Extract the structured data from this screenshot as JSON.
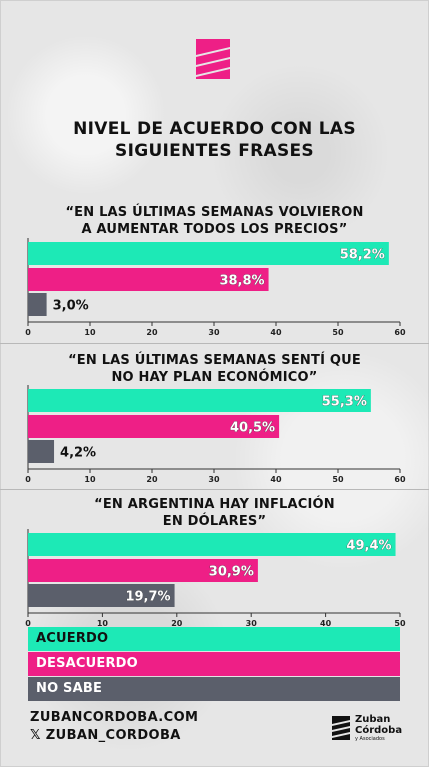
{
  "title_lines": [
    "NIVEL DE ACUERDO CON LAS",
    "SIGUIENTES FRASES"
  ],
  "colors": {
    "acuerdo": "#1de9b6",
    "desacuerdo": "#ee1f86",
    "no_sabe": "#5b5f6b"
  },
  "chart_data": [
    {
      "type": "bar",
      "orientation": "horizontal",
      "title_lines": [
        "“EN LAS ÚLTIMAS SEMANAS VOLVIERON",
        "A AUMENTAR TODOS LOS PRECIOS”"
      ],
      "categories": [
        "ACUERDO",
        "DESACUERDO",
        "NO SABE"
      ],
      "values": [
        58.2,
        38.8,
        3.0
      ],
      "value_labels": [
        "58,2%",
        "38,8%",
        "3,0%"
      ],
      "xlim": [
        0,
        60
      ],
      "ticks": [
        "0",
        "10",
        "20",
        "30",
        "40",
        "50",
        "60"
      ]
    },
    {
      "type": "bar",
      "orientation": "horizontal",
      "title_lines": [
        "“EN LAS ÚLTIMAS SEMANAS SENTÍ QUE",
        "NO HAY PLAN ECONÓMICO”"
      ],
      "categories": [
        "ACUERDO",
        "DESACUERDO",
        "NO SABE"
      ],
      "values": [
        55.3,
        40.5,
        4.2
      ],
      "value_labels": [
        "55,3%",
        "40,5%",
        "4,2%"
      ],
      "xlim": [
        0,
        60
      ],
      "ticks": [
        "0",
        "10",
        "20",
        "30",
        "40",
        "50",
        "60"
      ]
    },
    {
      "type": "bar",
      "orientation": "horizontal",
      "title_lines": [
        "“EN ARGENTINA HAY INFLACIÓN",
        "EN DÓLARES”"
      ],
      "categories": [
        "ACUERDO",
        "DESACUERDO",
        "NO SABE"
      ],
      "values": [
        49.4,
        30.9,
        19.7
      ],
      "value_labels": [
        "49,4%",
        "30,9%",
        "19,7%"
      ],
      "xlim": [
        0,
        50
      ],
      "ticks": [
        "0",
        "10",
        "20",
        "30",
        "40",
        "50"
      ]
    }
  ],
  "legend": [
    {
      "label": "ACUERDO",
      "key": "acuerdo"
    },
    {
      "label": "DESACUERDO",
      "key": "desacuerdo"
    },
    {
      "label": "NO SABE",
      "key": "no_sabe"
    }
  ],
  "footer": {
    "website": "ZUBANCORDOBA.COM",
    "social": "𝕏 ZUBAN_CORDOBA",
    "brand_line1": "Zuban",
    "brand_line2": "Córdoba",
    "brand_line3": "y Asociados"
  }
}
